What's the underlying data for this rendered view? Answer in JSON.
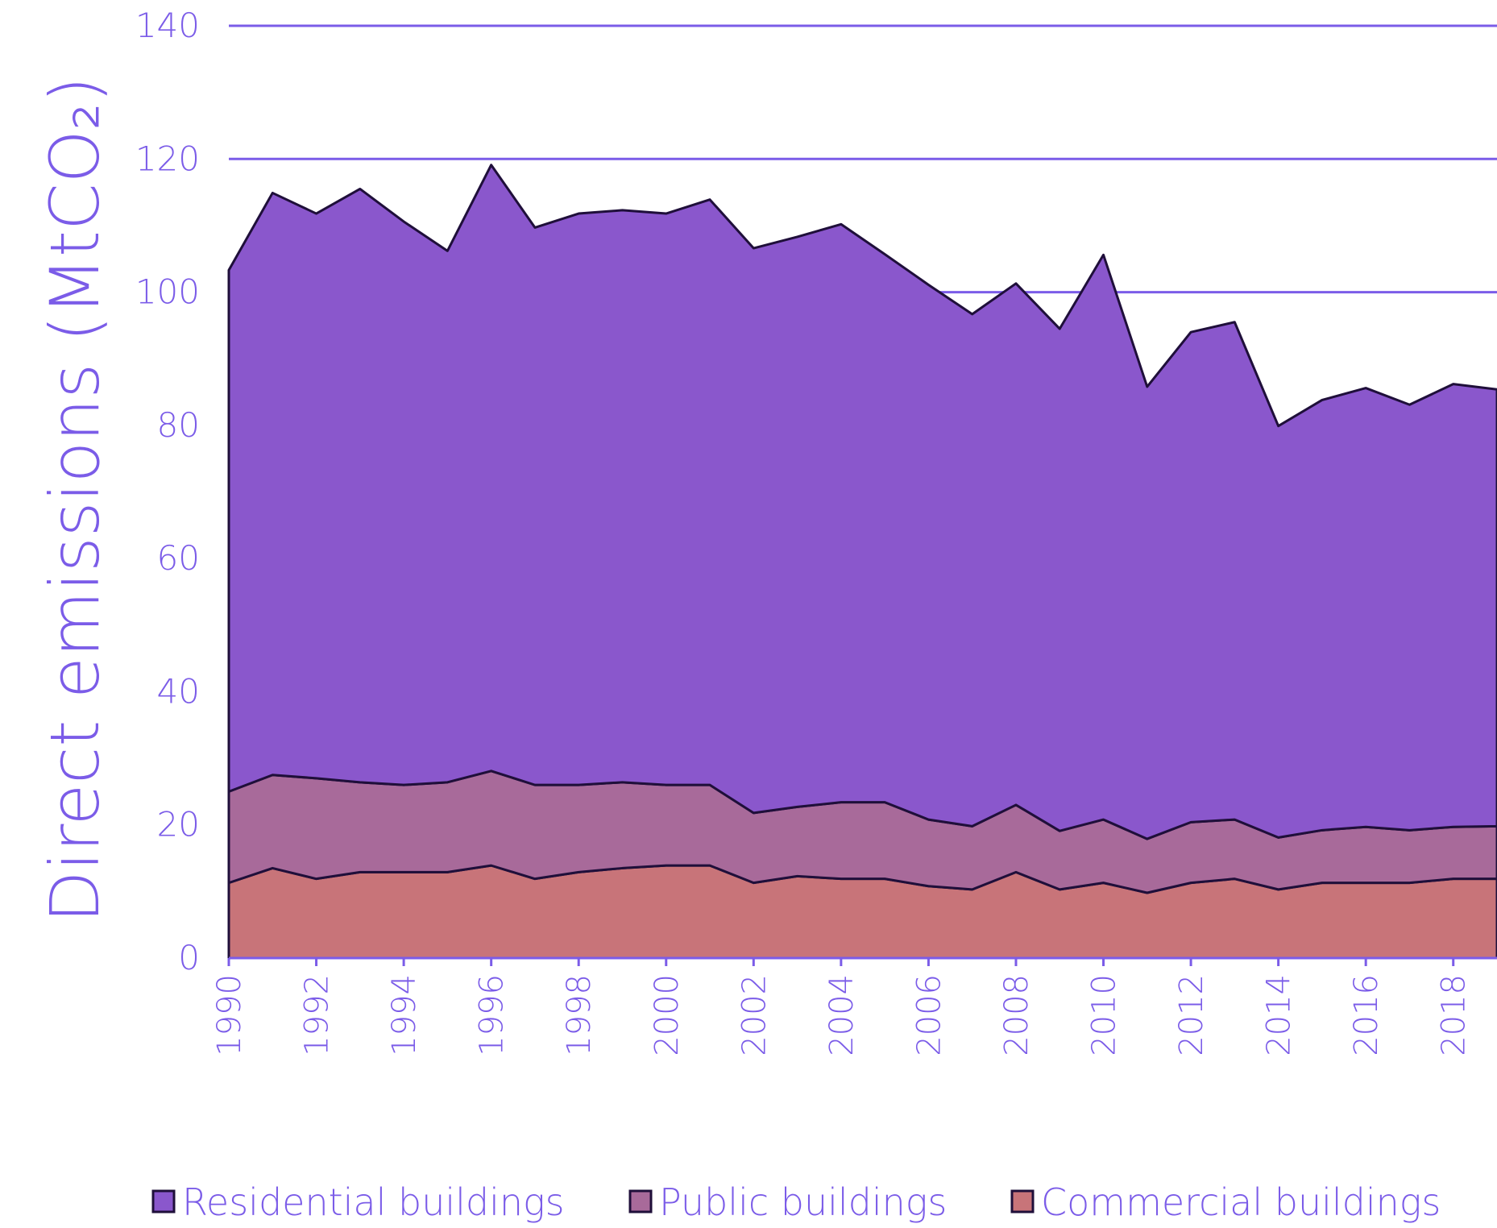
{
  "chart_data": {
    "type": "stacked_area",
    "ylabel": "Direct emissions (MtCO₂)",
    "x": [
      1990,
      1991,
      1992,
      1993,
      1994,
      1995,
      1996,
      1997,
      1998,
      1999,
      2000,
      2001,
      2002,
      2003,
      2004,
      2005,
      2006,
      2007,
      2008,
      2009,
      2010,
      2011,
      2012,
      2013,
      2014,
      2015,
      2016,
      2017,
      2018,
      2019
    ],
    "xlim": [
      1990,
      2019
    ],
    "xticks": [
      1990,
      1992,
      1994,
      1996,
      1998,
      2000,
      2002,
      2004,
      2006,
      2008,
      2010,
      2012,
      2014,
      2016,
      2018
    ],
    "ylim": [
      0,
      140
    ],
    "yticks": [
      0,
      20,
      40,
      60,
      80,
      100,
      120,
      140
    ],
    "grid": true,
    "legend": "bottom",
    "series": [
      {
        "name": "Residential buildings",
        "color": "#8a57cc",
        "values": [
          78.3,
          87.4,
          84.8,
          89.1,
          84.6,
          79.8,
          91.0,
          83.7,
          85.8,
          85.9,
          85.8,
          87.9,
          84.8,
          85.6,
          86.8,
          82.3,
          80.3,
          76.9,
          78.3,
          75.4,
          84.8,
          67.9,
          73.6,
          74.7,
          61.8,
          64.6,
          65.9,
          63.9,
          66.5,
          65.6
        ]
      },
      {
        "name": "Public buildings",
        "color": "#a86a9a",
        "values": [
          13.7,
          14.0,
          15.1,
          13.5,
          13.1,
          13.5,
          14.2,
          14.1,
          13.1,
          12.9,
          12.1,
          12.1,
          10.5,
          10.4,
          11.5,
          11.5,
          10.0,
          9.5,
          10.1,
          8.8,
          9.5,
          8.1,
          9.1,
          8.9,
          7.8,
          7.9,
          8.4,
          7.9,
          7.8,
          7.9
        ]
      },
      {
        "name": "Commercial buildings",
        "color": "#c87479",
        "values": [
          11.3,
          13.5,
          11.9,
          12.9,
          12.9,
          12.9,
          13.9,
          11.9,
          12.9,
          13.5,
          13.9,
          13.9,
          11.3,
          12.3,
          11.9,
          11.9,
          10.8,
          10.3,
          12.9,
          10.3,
          11.3,
          9.8,
          11.3,
          11.9,
          10.3,
          11.3,
          11.3,
          11.3,
          11.9,
          11.9
        ]
      }
    ]
  }
}
